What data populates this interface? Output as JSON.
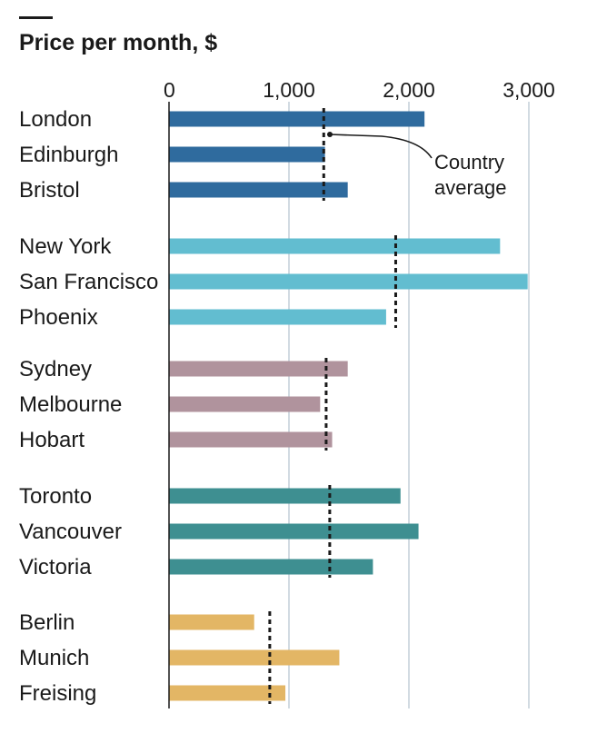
{
  "chart_data": {
    "type": "bar",
    "orientation": "horizontal",
    "title": "Price per month, $",
    "xlim": [
      0,
      3000
    ],
    "xticks": [
      {
        "value": 0,
        "label": "0"
      },
      {
        "value": 1000,
        "label": "1,000"
      },
      {
        "value": 2000,
        "label": "2,000"
      },
      {
        "value": 3000,
        "label": "3,000"
      }
    ],
    "grid": true,
    "annotation": {
      "line1": "Country",
      "line2": "average"
    },
    "groups": [
      {
        "color": "#2f6b9e",
        "average": 1290,
        "items": [
          {
            "label": "London",
            "value": 2130
          },
          {
            "label": "Edinburgh",
            "value": 1300
          },
          {
            "label": "Bristol",
            "value": 1490
          }
        ]
      },
      {
        "color": "#62bdd0",
        "average": 1890,
        "items": [
          {
            "label": "New York",
            "value": 2760
          },
          {
            "label": "San Francisco",
            "value": 2990
          },
          {
            "label": "Phoenix",
            "value": 1810
          }
        ]
      },
      {
        "color": "#b0939d",
        "average": 1310,
        "items": [
          {
            "label": "Sydney",
            "value": 1490
          },
          {
            "label": "Melbourne",
            "value": 1260
          },
          {
            "label": "Hobart",
            "value": 1360
          }
        ]
      },
      {
        "color": "#3e8f91",
        "average": 1340,
        "items": [
          {
            "label": "Toronto",
            "value": 1930
          },
          {
            "label": "Vancouver",
            "value": 2080
          },
          {
            "label": "Victoria",
            "value": 1700
          }
        ]
      },
      {
        "color": "#e3b665",
        "average": 840,
        "items": [
          {
            "label": "Berlin",
            "value": 710
          },
          {
            "label": "Munich",
            "value": 1420
          },
          {
            "label": "Freising",
            "value": 970
          }
        ]
      }
    ]
  }
}
